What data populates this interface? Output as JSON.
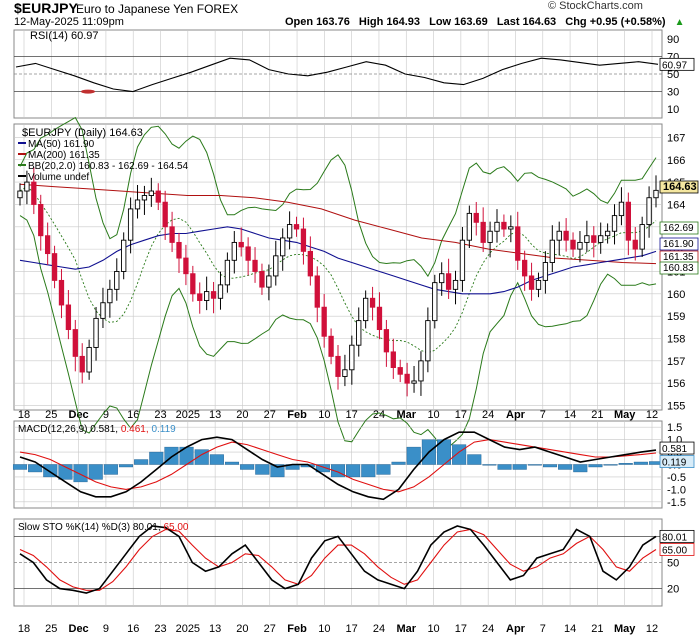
{
  "header": {
    "symbol": "$EURJPY",
    "name": "Euro to Japanese Yen FOREX",
    "date": "12-May-2025 11:09pm",
    "open": "Open 163.76",
    "high": "High 164.93",
    "low": "Low 163.69",
    "last": "Last 164.63",
    "change": "Chg +0.95 (+0.58%)",
    "logo": "© StockCharts.com",
    "up_arrow": "▲"
  },
  "rsi": {
    "label": "RSI(14) 60.97",
    "value_badge": "60.97",
    "ticks": [
      "90",
      "70",
      "50",
      "30",
      "10"
    ]
  },
  "price": {
    "legend_title": "$EURJPY (Daily) 164.63",
    "legend_ma50": "MA(50) 161.90",
    "legend_ma200": "MA(200) 161.35",
    "legend_bb": "BB(20,2.0) 160.83 - 162.69 - 164.54",
    "legend_volume": "Volume undef",
    "badges": [
      "164.63",
      "162.69",
      "161.90",
      "161.35",
      "160.83"
    ],
    "ticks": [
      "167",
      "166",
      "165",
      "164",
      "163",
      "162",
      "161",
      "160",
      "159",
      "158",
      "157",
      "156",
      "155"
    ]
  },
  "macd": {
    "label_prefix": "MACD(12,26,9)",
    "label_macd": "0.581",
    "label_signal": "0.461",
    "label_hist": "0.119",
    "badges": [
      "0.581",
      "0.119"
    ],
    "ticks": [
      "1.5",
      "1.0",
      "0.5",
      "0.0",
      "-0.5",
      "-1.0",
      "-1.5"
    ]
  },
  "sto": {
    "label_prefix": "Slow STO %K(14) %D(3)",
    "label_k": "80.01",
    "label_d": "65.00",
    "badges": [
      "80.01",
      "65.00"
    ],
    "ticks": [
      "80",
      "50",
      "20"
    ]
  },
  "x_axis": {
    "labels": [
      "18",
      "25",
      "Dec",
      "9",
      "16",
      "23",
      "2025",
      "13",
      "20",
      "27",
      "Feb",
      "10",
      "17",
      "24",
      "Mar",
      "10",
      "17",
      "24",
      "Apr",
      "7",
      "14",
      "21",
      "May",
      "12"
    ]
  },
  "colors": {
    "up": "#000000",
    "down": "#d0103a",
    "ma50": "#101090",
    "ma200": "#b01010",
    "bb": "#2a7a1a",
    "bb_mid": "#2a7a1a",
    "macd": "#000000",
    "signal": "#e01010",
    "hist": "#3a8fc8",
    "stoK": "#000000",
    "stoD": "#e01010",
    "grid": "#c8c8c8"
  },
  "chart_data": {
    "type": "candlestick",
    "title": "$EURJPY Euro to Japanese Yen FOREX",
    "series_daily": "Daily",
    "ylim": [
      154.8,
      167.6
    ],
    "x_dates": [
      "Nov 18",
      "Nov 25",
      "Dec 2",
      "Dec 9",
      "Dec 16",
      "Dec 23",
      "Jan 2 2025",
      "Jan 13",
      "Jan 20",
      "Jan 27",
      "Feb 3",
      "Feb 10",
      "Feb 17",
      "Feb 24",
      "Mar 3",
      "Mar 10",
      "Mar 17",
      "Mar 24",
      "Apr 1",
      "Apr 7",
      "Apr 14",
      "Apr 21",
      "May 1",
      "May 12"
    ],
    "closes": [
      164.6,
      165.0,
      164.0,
      162.6,
      161.8,
      160.6,
      159.5,
      158.4,
      157.2,
      156.5,
      157.6,
      158.9,
      159.6,
      160.2,
      161.0,
      162.4,
      163.8,
      164.2,
      164.4,
      164.6,
      164.1,
      163.0,
      162.3,
      161.6,
      160.9,
      160.0,
      159.7,
      160.1,
      159.8,
      160.4,
      161.5,
      162.3,
      162.1,
      161.5,
      161.0,
      160.3,
      160.8,
      161.7,
      162.5,
      163.1,
      162.9,
      161.9,
      160.8,
      159.4,
      158.1,
      157.2,
      156.3,
      156.6,
      157.7,
      158.8,
      159.8,
      159.4,
      158.4,
      157.4,
      156.7,
      156.4,
      156.0,
      156.1,
      157.0,
      158.8,
      160.5,
      160.9,
      160.2,
      160.6,
      162.4,
      163.6,
      163.2,
      162.3,
      162.8,
      163.2,
      162.9,
      163.0,
      161.5,
      160.8,
      160.2,
      160.6,
      161.4,
      162.4,
      162.8,
      162.4,
      162.0,
      162.3,
      162.6,
      162.3,
      162.6,
      162.8,
      163.5,
      164.1,
      162.4,
      162.0,
      163.1,
      164.3,
      164.63
    ],
    "ma50": [
      161.5,
      161.4,
      161.3,
      161.2,
      161.1,
      161.2,
      161.5,
      161.9,
      162.2,
      162.4,
      162.6,
      162.7,
      162.7,
      162.8,
      162.9,
      163.0,
      162.9,
      162.7,
      162.5,
      162.4,
      162.3,
      162.1,
      161.9,
      161.6,
      161.4,
      161.2,
      161.0,
      160.8,
      160.6,
      160.4,
      160.2,
      160.1,
      160.0,
      160.0,
      160.0,
      160.1,
      160.3,
      160.6,
      160.8,
      161.0,
      161.2,
      161.3,
      161.4,
      161.5,
      161.6,
      161.7,
      161.9
    ],
    "ma200": [
      164.9,
      164.8,
      164.7,
      164.6,
      164.5,
      164.4,
      164.4,
      164.3,
      164.1,
      163.8,
      163.3,
      162.9,
      162.5,
      162.3,
      162.0,
      161.8,
      161.6,
      161.5,
      161.4,
      161.35
    ],
    "rsi": [
      58,
      62,
      55,
      48,
      40,
      33,
      30,
      38,
      45,
      52,
      60,
      68,
      66,
      55,
      50,
      48,
      52,
      58,
      64,
      60,
      50,
      46,
      40,
      38,
      45,
      55,
      62,
      68,
      66,
      63,
      60,
      62,
      64,
      60.97
    ],
    "macd": [
      0.3,
      0.1,
      -0.3,
      -0.7,
      -1.1,
      -1.3,
      -1.3,
      -1.1,
      -0.7,
      -0.2,
      0.3,
      0.7,
      1.0,
      1.1,
      1.0,
      0.6,
      0.2,
      -0.1,
      0.0,
      0.0,
      -0.4,
      -0.8,
      -1.1,
      -1.3,
      -1.4,
      -1.0,
      -0.2,
      0.5,
      1.0,
      1.3,
      1.3,
      1.0,
      0.7,
      0.6,
      0.7,
      0.5,
      0.3,
      0.1,
      0.2,
      0.3,
      0.4,
      0.5,
      0.581
    ],
    "macd_signal": [
      0.5,
      0.4,
      0.2,
      -0.1,
      -0.4,
      -0.7,
      -0.9,
      -1.0,
      -0.9,
      -0.7,
      -0.4,
      0.0,
      0.4,
      0.7,
      0.9,
      0.8,
      0.6,
      0.4,
      0.2,
      0.1,
      -0.1,
      -0.3,
      -0.6,
      -0.8,
      -1.0,
      -1.1,
      -0.9,
      -0.5,
      0.0,
      0.5,
      0.9,
      1.0,
      0.9,
      0.8,
      0.7,
      0.6,
      0.5,
      0.4,
      0.3,
      0.3,
      0.35,
      0.4,
      0.461
    ],
    "sto_k": [
      60,
      50,
      30,
      20,
      18,
      15,
      20,
      40,
      60,
      80,
      92,
      90,
      80,
      50,
      40,
      45,
      60,
      70,
      50,
      30,
      20,
      25,
      55,
      75,
      80,
      60,
      40,
      30,
      25,
      20,
      40,
      70,
      85,
      92,
      88,
      70,
      50,
      30,
      35,
      55,
      60,
      65,
      88,
      80,
      40,
      30,
      45,
      70,
      80.01
    ],
    "sto_d": [
      65,
      58,
      45,
      30,
      22,
      18,
      18,
      28,
      45,
      65,
      80,
      88,
      86,
      70,
      55,
      45,
      50,
      60,
      58,
      45,
      30,
      25,
      35,
      55,
      70,
      70,
      60,
      45,
      33,
      25,
      30,
      50,
      70,
      85,
      88,
      82,
      65,
      48,
      40,
      45,
      55,
      60,
      72,
      80,
      65,
      45,
      40,
      55,
      65.0
    ],
    "rsi_range": [
      0,
      100
    ],
    "macd_range": [
      -1.75,
      1.75
    ],
    "sto_range": [
      0,
      100
    ]
  }
}
